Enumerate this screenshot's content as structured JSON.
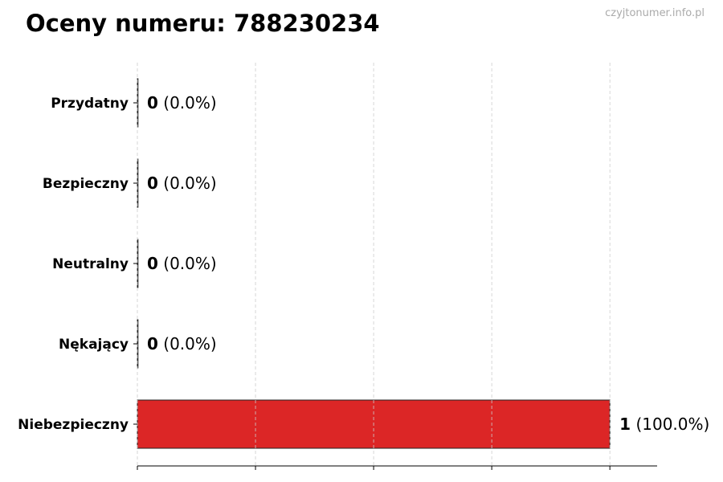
{
  "title": "Oceny numeru: 788230234",
  "watermark": "czyjtonumer.info.pl",
  "chart_data": {
    "type": "bar",
    "orientation": "horizontal",
    "categories": [
      "Przydatny",
      "Bezpieczny",
      "Neutralny",
      "Nękający",
      "Niebezpieczny"
    ],
    "values": [
      0,
      0,
      0,
      0,
      1
    ],
    "labels": [
      {
        "count": "0",
        "pct": "(0.0%)"
      },
      {
        "count": "0",
        "pct": "(0.0%)"
      },
      {
        "count": "0",
        "pct": "(0.0%)"
      },
      {
        "count": "0",
        "pct": "(0.0%)"
      },
      {
        "count": "1",
        "pct": "(100.0%)"
      }
    ],
    "xlim": [
      0,
      1.1
    ],
    "xticks": [
      0,
      0.25,
      0.5,
      0.75,
      1.0
    ],
    "xtick_labels_shown": false,
    "grid": "x-dashed",
    "bar_color": "#dc2626",
    "edge_color": "#222222"
  }
}
